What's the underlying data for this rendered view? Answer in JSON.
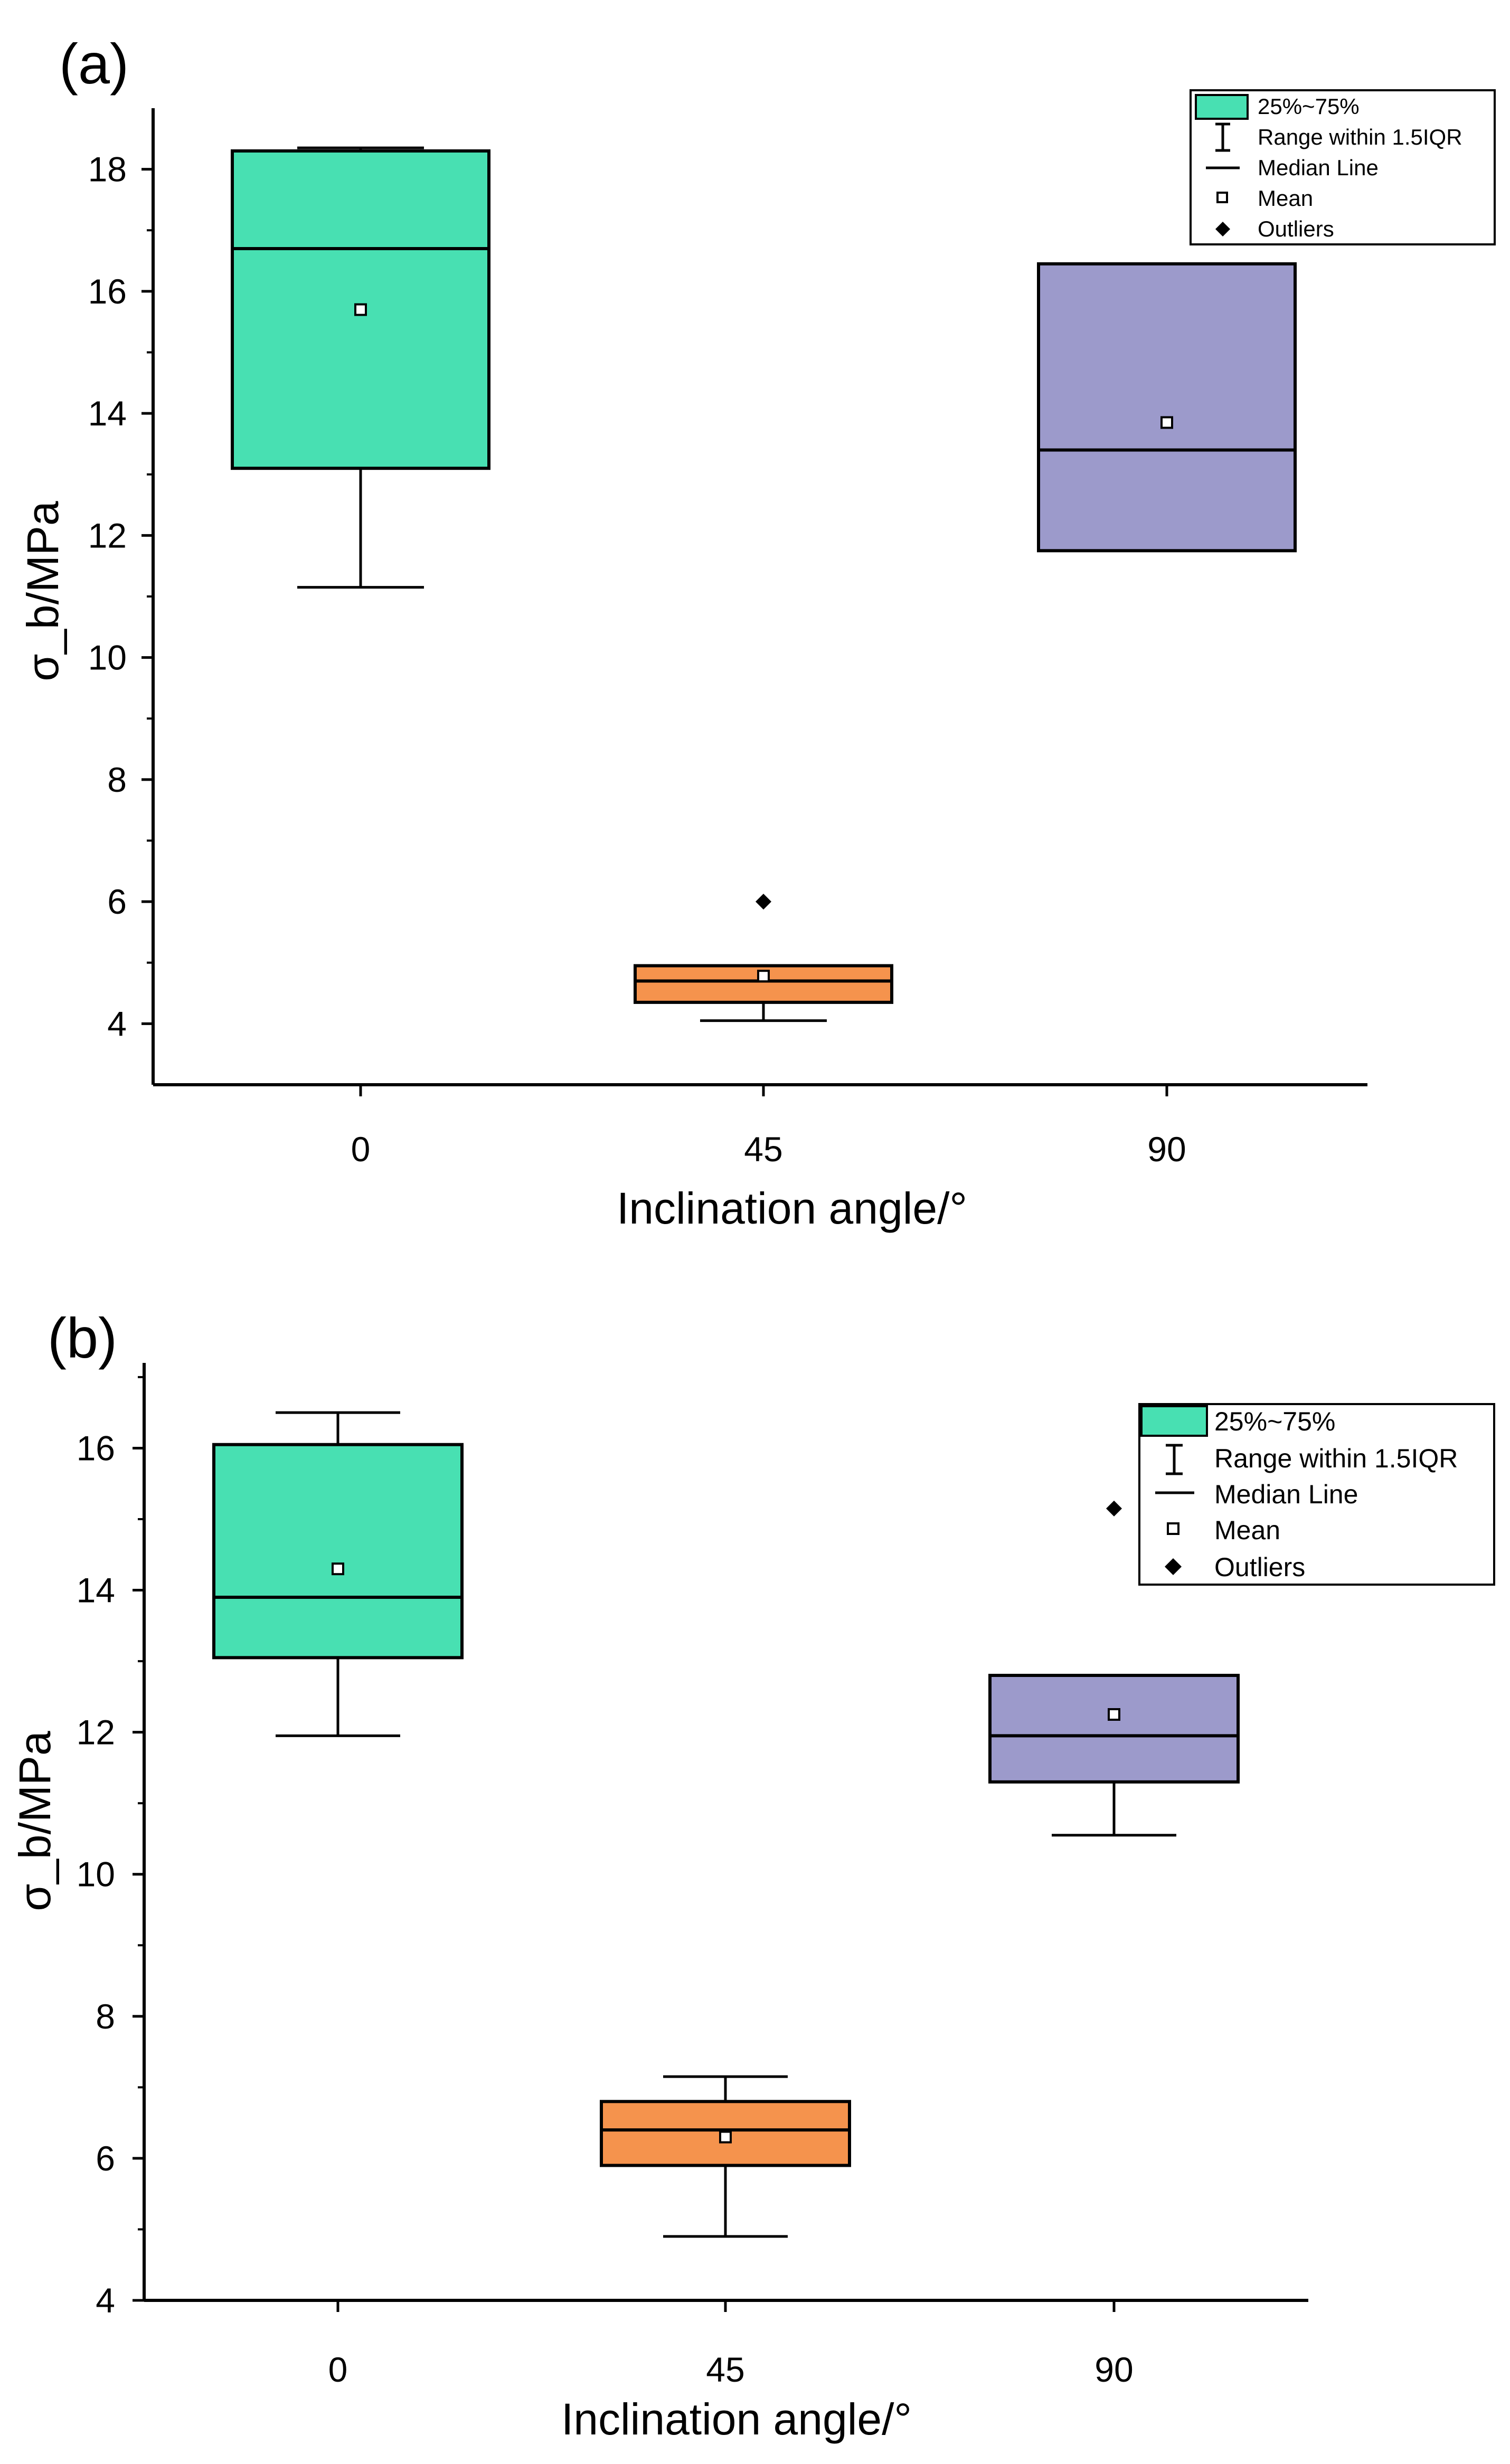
{
  "chart_data": [
    {
      "panel_label": "(a)",
      "type": "box",
      "title": "",
      "xlabel": "Inclination angle/°",
      "ylabel": "σ_b/MPa",
      "categories": [
        "0",
        "45",
        "90"
      ],
      "ylim": [
        3,
        19
      ],
      "yticks": [
        "4",
        "6",
        "8",
        "10",
        "12",
        "14",
        "16",
        "18"
      ],
      "yticks_values": [
        4,
        6,
        8,
        10,
        12,
        14,
        16,
        18
      ],
      "minor_ticks": true,
      "legend_position": "top-right",
      "legend": {
        "box": "25%~75%",
        "whisker": "Range within 1.5IQR",
        "median": "Median Line",
        "mean": "Mean",
        "outliers": "Outliers"
      },
      "boxes": [
        {
          "category": "0",
          "q1": 13.1,
          "median": 16.7,
          "q3": 18.3,
          "whisker_low": 11.15,
          "whisker_high": 18.35,
          "mean": 15.7,
          "outliers": [],
          "color": "#48E0B2"
        },
        {
          "category": "45",
          "q1": 4.35,
          "median": 4.7,
          "q3": 4.95,
          "whisker_low": 4.05,
          "whisker_high": 4.95,
          "mean": 4.78,
          "outliers": [
            6.0
          ],
          "color": "#F5934D"
        },
        {
          "category": "90",
          "q1": 11.75,
          "median": 13.4,
          "q3": 16.45,
          "whisker_low": 11.75,
          "whisker_high": 16.45,
          "mean": 13.85,
          "outliers": [],
          "color": "#9C9ACB"
        }
      ]
    },
    {
      "panel_label": "(b)",
      "type": "box",
      "title": "",
      "xlabel": "Inclination angle/°",
      "ylabel": "σ_b/MPa",
      "categories": [
        "0",
        "45",
        "90"
      ],
      "ylim": [
        4,
        17.2
      ],
      "yticks": [
        "4",
        "6",
        "8",
        "10",
        "12",
        "14",
        "16"
      ],
      "yticks_values": [
        4,
        6,
        8,
        10,
        12,
        14,
        16
      ],
      "minor_ticks": true,
      "legend_position": "top-right",
      "legend": {
        "box": "25%~75%",
        "whisker": "Range within 1.5IQR",
        "median": "Median Line",
        "mean": "Mean",
        "outliers": "Outliers"
      },
      "boxes": [
        {
          "category": "0",
          "q1": 13.05,
          "median": 13.9,
          "q3": 16.05,
          "whisker_low": 11.95,
          "whisker_high": 16.5,
          "mean": 14.3,
          "outliers": [],
          "color": "#48E0B2"
        },
        {
          "category": "45",
          "q1": 5.9,
          "median": 6.4,
          "q3": 6.8,
          "whisker_low": 4.9,
          "whisker_high": 7.15,
          "mean": 6.3,
          "outliers": [],
          "color": "#F5934D"
        },
        {
          "category": "90",
          "q1": 11.3,
          "median": 11.95,
          "q3": 12.8,
          "whisker_low": 10.55,
          "whisker_high": 12.8,
          "mean": 12.25,
          "outliers": [
            15.15
          ],
          "color": "#9C9ACB"
        }
      ]
    }
  ]
}
